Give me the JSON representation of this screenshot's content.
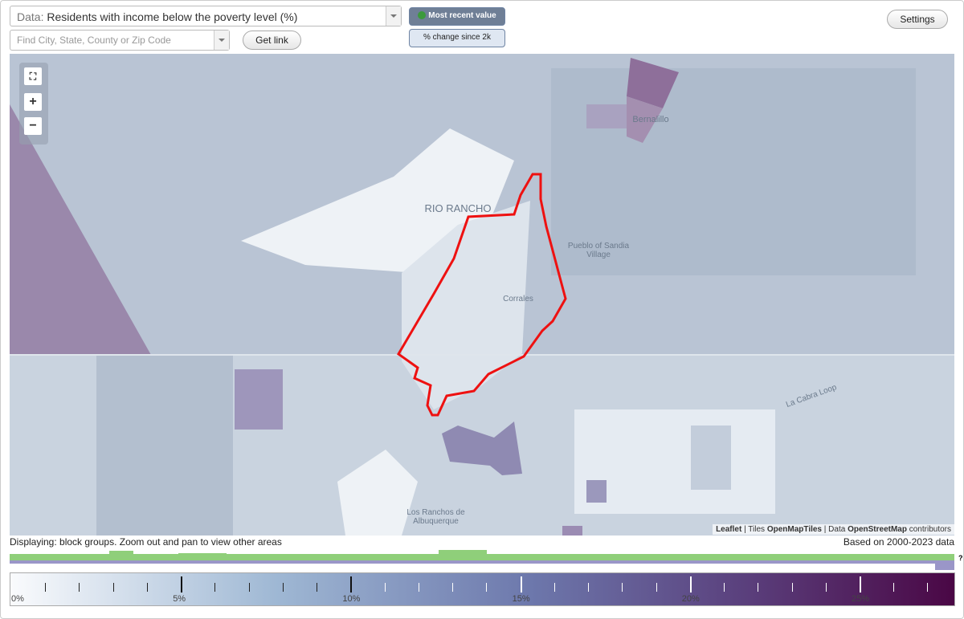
{
  "header": {
    "data_prefix": "Data:",
    "data_select": "Residents with income below the poverty level (%)",
    "search_placeholder": "Find City, State, County or Zip Code",
    "get_link": "Get link",
    "most_recent": "Most recent value",
    "change_since": "% change since 2k",
    "settings": "Settings"
  },
  "map": {
    "labels": [
      "RIO RANCHO",
      "Bernalillo",
      "Pueblo of Sandia Village",
      "Corrales",
      "Los Ranchos de Albuquerque",
      "La Cabra Loop"
    ],
    "attribution": {
      "leaflet": "Leaflet",
      "tiles_prefix": "Tiles",
      "tiles": "OpenMapTiles",
      "data_prefix": "Data",
      "data": "OpenStreetMap",
      "suffix": "contributors"
    }
  },
  "footer": {
    "displaying": "Displaying: block groups. Zoom out and pan to view other areas",
    "based_on": "Based on 2000-2023 data",
    "question": "?"
  },
  "legend": {
    "labels": [
      "0%",
      "5%",
      "10%",
      "15%",
      "20%",
      "25%"
    ]
  }
}
